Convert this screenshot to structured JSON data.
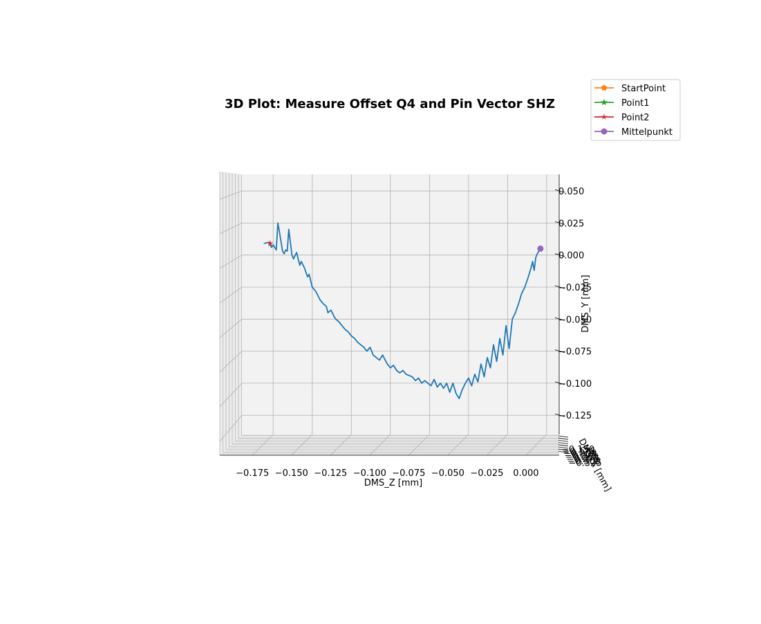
{
  "chart_data": {
    "type": "line",
    "title": "3D Plot: Measure Offset Q4 and Pin Vector SHZ",
    "xlabel": "DMS_Z [mm]",
    "ylabel": "DMS_Y [mm]",
    "zlabel": "DMS_X [mm]",
    "xlim": [
      -0.195,
      0.008
    ],
    "ylim": [
      -0.14,
      0.063
    ],
    "x_ticks": [
      "−0.175",
      "−0.150",
      "−0.125",
      "−0.100",
      "−0.075",
      "−0.050",
      "−0.025",
      "0.000"
    ],
    "x_tick_values": [
      -0.175,
      -0.15,
      -0.125,
      -0.1,
      -0.075,
      -0.05,
      -0.025,
      0.0
    ],
    "y_ticks": [
      "0.050",
      "0.025",
      "0.000",
      "−0.025",
      "−0.050",
      "−0.075",
      "−0.100",
      "−0.125"
    ],
    "y_tick_values": [
      0.05,
      0.025,
      0.0,
      -0.025,
      -0.05,
      -0.075,
      -0.1,
      -0.125
    ],
    "depth_ticks": [
      "−0.150",
      "−0.175",
      "−0.200",
      "−0.225",
      "−0.250",
      "−0.275",
      "−0.300",
      "−0.325"
    ],
    "grid": true,
    "legend_position": "top-right",
    "legend": [
      {
        "label": "StartPoint",
        "color": "#ff7f0e",
        "marker": "pentagon"
      },
      {
        "label": "Point1",
        "color": "#2ca02c",
        "marker": "star"
      },
      {
        "label": "Point2",
        "color": "#d62728",
        "marker": "star-thin"
      },
      {
        "label": "Mittelpunkt",
        "color": "#9467bd",
        "marker": "circle"
      }
    ],
    "series": [
      {
        "color": "#1f77b4",
        "x": [
          -0.181,
          -0.178,
          -0.176,
          -0.175,
          -0.173,
          -0.172,
          -0.171,
          -0.169,
          -0.168,
          -0.167,
          -0.166,
          -0.165,
          -0.163,
          -0.162,
          -0.16,
          -0.158,
          -0.157,
          -0.155,
          -0.153,
          -0.152,
          -0.15,
          -0.148,
          -0.147,
          -0.145,
          -0.143,
          -0.141,
          -0.14,
          -0.138,
          -0.136,
          -0.135,
          -0.133,
          -0.131,
          -0.129,
          -0.127,
          -0.125,
          -0.123,
          -0.121,
          -0.119,
          -0.117,
          -0.115,
          -0.113,
          -0.111,
          -0.109,
          -0.107,
          -0.105,
          -0.102,
          -0.1,
          -0.098,
          -0.096,
          -0.094,
          -0.092,
          -0.09,
          -0.088,
          -0.086,
          -0.084,
          -0.082,
          -0.08,
          -0.078,
          -0.076,
          -0.074,
          -0.072,
          -0.07,
          -0.068,
          -0.066,
          -0.064,
          -0.062,
          -0.06,
          -0.058,
          -0.056,
          -0.054,
          -0.052,
          -0.05,
          -0.048,
          -0.046,
          -0.044,
          -0.042,
          -0.04,
          -0.038,
          -0.036,
          -0.034,
          -0.032,
          -0.03,
          -0.028,
          -0.026,
          -0.024,
          -0.022,
          -0.02,
          -0.018,
          -0.016,
          -0.014,
          -0.012,
          -0.01,
          -0.009,
          -0.008,
          -0.007,
          -0.006,
          -0.005,
          -0.004
        ],
        "y": [
          0.009,
          0.01,
          0.006,
          0.008,
          0.004,
          0.025,
          0.018,
          0.003,
          0.001,
          0.004,
          0.003,
          0.02,
          0.0,
          -0.003,
          0.002,
          -0.008,
          -0.005,
          -0.01,
          -0.017,
          -0.015,
          -0.025,
          -0.028,
          -0.03,
          -0.035,
          -0.038,
          -0.04,
          -0.045,
          -0.043,
          -0.048,
          -0.05,
          -0.052,
          -0.055,
          -0.058,
          -0.06,
          -0.063,
          -0.065,
          -0.068,
          -0.07,
          -0.072,
          -0.075,
          -0.072,
          -0.078,
          -0.08,
          -0.082,
          -0.078,
          -0.085,
          -0.088,
          -0.086,
          -0.09,
          -0.092,
          -0.09,
          -0.093,
          -0.094,
          -0.095,
          -0.098,
          -0.096,
          -0.1,
          -0.098,
          -0.1,
          -0.102,
          -0.097,
          -0.103,
          -0.1,
          -0.104,
          -0.1,
          -0.107,
          -0.1,
          -0.108,
          -0.112,
          -0.105,
          -0.1,
          -0.096,
          -0.102,
          -0.093,
          -0.099,
          -0.085,
          -0.095,
          -0.08,
          -0.088,
          -0.07,
          -0.083,
          -0.065,
          -0.078,
          -0.055,
          -0.073,
          -0.05,
          -0.045,
          -0.038,
          -0.03,
          -0.025,
          -0.018,
          -0.01,
          -0.005,
          -0.012,
          -0.002,
          0.001,
          0.003,
          0.005
        ]
      }
    ],
    "markers": [
      {
        "label": "Point2",
        "x": -0.177,
        "y": 0.009,
        "color": "#d62728"
      },
      {
        "label": "Mittelpunkt",
        "x": -0.004,
        "y": 0.005,
        "color": "#9467bd"
      }
    ]
  }
}
